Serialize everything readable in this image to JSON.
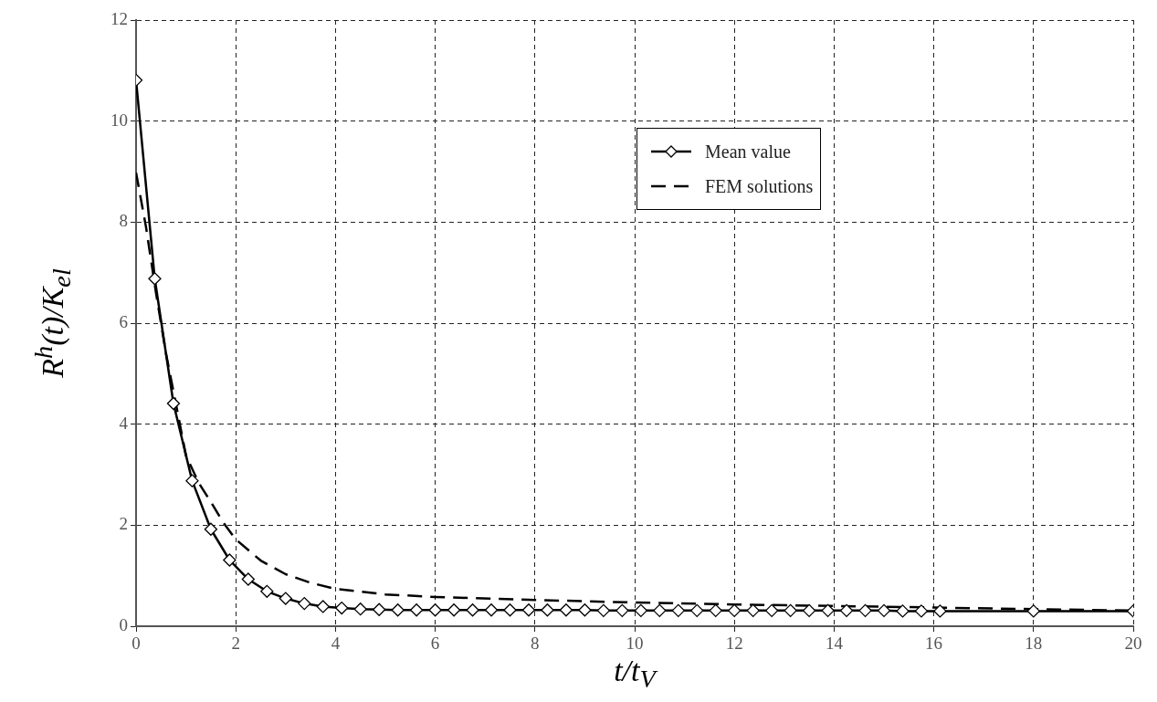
{
  "chart_data": {
    "type": "line",
    "xlabel": "t/t$_{V}$",
    "ylabel": "R$^{h}$(t)/K$_{el}$",
    "xlim": [
      0,
      20
    ],
    "xticks": [
      0,
      2,
      4,
      6,
      8,
      10,
      12,
      14,
      16,
      18,
      20
    ],
    "ylim": [
      0,
      12
    ],
    "yticks": [
      0,
      2,
      4,
      6,
      8,
      10,
      12
    ],
    "grid": true,
    "legend": "top right",
    "series": [
      {
        "name": "Mean value",
        "color": "#000000",
        "marker": "diamond",
        "line_style": "solid",
        "x": [
          0,
          0.375,
          0.75,
          1.125,
          1.5,
          1.875,
          2.25,
          2.625,
          3,
          3.375,
          3.75,
          4.125,
          4.5,
          4.875,
          5.25,
          5.625,
          6,
          6.375,
          6.75,
          7.125,
          7.5,
          7.875,
          8.25,
          8.625,
          9,
          9.375,
          9.75,
          10.125,
          10.5,
          10.875,
          11.25,
          11.625,
          12,
          12.375,
          12.75,
          13.125,
          13.5,
          13.875,
          14.25,
          14.625,
          15,
          15.375,
          15.75,
          16.125,
          18,
          20
        ],
        "values": [
          10.81,
          6.88,
          4.41,
          2.88,
          1.92,
          1.31,
          0.93,
          0.69,
          0.55,
          0.45,
          0.39,
          0.36,
          0.34,
          0.33,
          0.32,
          0.32,
          0.32,
          0.32,
          0.32,
          0.32,
          0.32,
          0.32,
          0.32,
          0.32,
          0.32,
          0.31,
          0.31,
          0.31,
          0.31,
          0.31,
          0.31,
          0.31,
          0.31,
          0.31,
          0.31,
          0.31,
          0.31,
          0.31,
          0.31,
          0.31,
          0.31,
          0.3,
          0.3,
          0.3,
          0.3,
          0.3
        ]
      },
      {
        "name": "FEM solutions",
        "color": "#000000",
        "marker": "none",
        "line_style": "dashed",
        "x": [
          0,
          0.2,
          0.4,
          0.6,
          0.8,
          1,
          1.25,
          1.5,
          1.75,
          2,
          2.5,
          3,
          3.5,
          4,
          5,
          6,
          8,
          10,
          12,
          14,
          16,
          18,
          20
        ],
        "values": [
          8.98,
          7.9,
          6.6,
          5.4,
          4.4,
          3.38,
          2.85,
          2.46,
          2.05,
          1.72,
          1.3,
          1.03,
          0.86,
          0.74,
          0.63,
          0.58,
          0.52,
          0.47,
          0.43,
          0.4,
          0.37,
          0.34,
          0.31
        ]
      }
    ]
  }
}
